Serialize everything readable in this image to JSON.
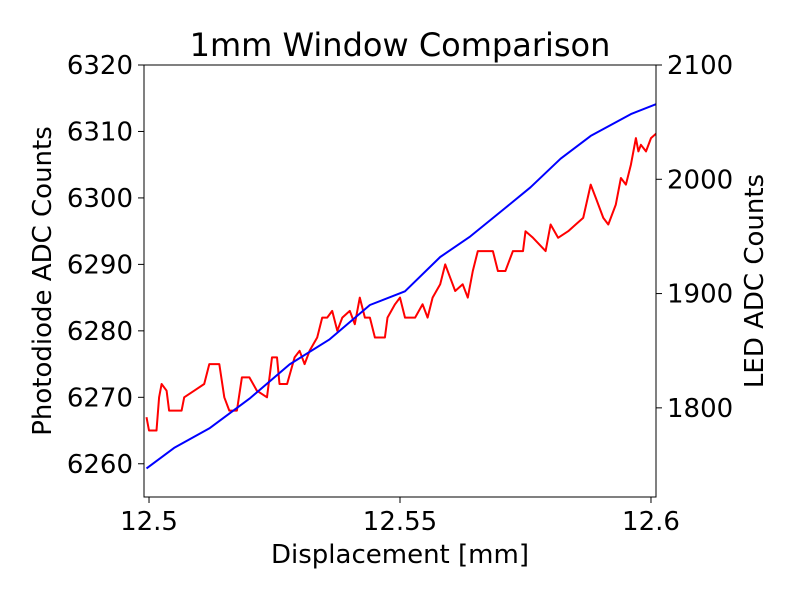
{
  "chart_data": {
    "type": "line",
    "title": "1mm Window Comparison",
    "xlabel": "Displacement [mm]",
    "ylabel_left": "Photodiode ADC Counts",
    "ylabel_right": "LED ADC Counts",
    "xlim": [
      12.499,
      12.601
    ],
    "ylim_left": [
      6255,
      6320
    ],
    "ylim_right": [
      1722,
      2100
    ],
    "x_ticks": [
      {
        "value": 12.5,
        "label": "12.5"
      },
      {
        "value": 12.55,
        "label": "12.55"
      },
      {
        "value": 12.6,
        "label": "12.6"
      }
    ],
    "y_ticks_left": [
      {
        "value": 6260,
        "label": "6260"
      },
      {
        "value": 6270,
        "label": "6270"
      },
      {
        "value": 6280,
        "label": "6280"
      },
      {
        "value": 6290,
        "label": "6290"
      },
      {
        "value": 6300,
        "label": "6300"
      },
      {
        "value": 6310,
        "label": "6310"
      },
      {
        "value": 6320,
        "label": "6320"
      }
    ],
    "y_ticks_right": [
      {
        "value": 1800,
        "label": "1800"
      },
      {
        "value": 1900,
        "label": "1900"
      },
      {
        "value": 2000,
        "label": "2000"
      },
      {
        "value": 2100,
        "label": "2100"
      }
    ],
    "grid": false,
    "series": [
      {
        "axis": "left",
        "color": "#ff0000",
        "points": [
          [
            12.4995,
            6267
          ],
          [
            12.5,
            6265
          ],
          [
            12.5015,
            6265
          ],
          [
            12.502,
            6270
          ],
          [
            12.5025,
            6272
          ],
          [
            12.5035,
            6271
          ],
          [
            12.504,
            6268
          ],
          [
            12.5065,
            6268
          ],
          [
            12.507,
            6270
          ],
          [
            12.509,
            6271
          ],
          [
            12.511,
            6272
          ],
          [
            12.512,
            6275
          ],
          [
            12.514,
            6275
          ],
          [
            12.515,
            6270
          ],
          [
            12.516,
            6268
          ],
          [
            12.5175,
            6268
          ],
          [
            12.5185,
            6273
          ],
          [
            12.52,
            6273
          ],
          [
            12.5215,
            6271
          ],
          [
            12.5235,
            6270
          ],
          [
            12.5245,
            6276
          ],
          [
            12.5255,
            6276
          ],
          [
            12.526,
            6272
          ],
          [
            12.5275,
            6272
          ],
          [
            12.529,
            6276
          ],
          [
            12.53,
            6277
          ],
          [
            12.531,
            6275
          ],
          [
            12.532,
            6277
          ],
          [
            12.5335,
            6279
          ],
          [
            12.5345,
            6282
          ],
          [
            12.5355,
            6282
          ],
          [
            12.5365,
            6283
          ],
          [
            12.5375,
            6280
          ],
          [
            12.5385,
            6282
          ],
          [
            12.54,
            6283
          ],
          [
            12.541,
            6281
          ],
          [
            12.542,
            6285
          ],
          [
            12.543,
            6282
          ],
          [
            12.544,
            6282
          ],
          [
            12.545,
            6279
          ],
          [
            12.547,
            6279
          ],
          [
            12.5475,
            6282
          ],
          [
            12.549,
            6284
          ],
          [
            12.55,
            6285
          ],
          [
            12.551,
            6282
          ],
          [
            12.553,
            6282
          ],
          [
            12.5545,
            6284
          ],
          [
            12.5555,
            6282
          ],
          [
            12.5565,
            6285
          ],
          [
            12.558,
            6287
          ],
          [
            12.559,
            6290
          ],
          [
            12.56,
            6288
          ],
          [
            12.561,
            6286
          ],
          [
            12.5625,
            6287
          ],
          [
            12.5635,
            6285
          ],
          [
            12.5645,
            6289
          ],
          [
            12.5655,
            6292
          ],
          [
            12.5685,
            6292
          ],
          [
            12.5695,
            6289
          ],
          [
            12.571,
            6289
          ],
          [
            12.5725,
            6292
          ],
          [
            12.5745,
            6292
          ],
          [
            12.575,
            6295
          ],
          [
            12.5765,
            6294
          ],
          [
            12.579,
            6292
          ],
          [
            12.58,
            6296
          ],
          [
            12.5815,
            6294
          ],
          [
            12.5835,
            6295
          ],
          [
            12.585,
            6296
          ],
          [
            12.5865,
            6297
          ],
          [
            12.588,
            6302
          ],
          [
            12.589,
            6300
          ],
          [
            12.5905,
            6297
          ],
          [
            12.5915,
            6296
          ],
          [
            12.593,
            6299
          ],
          [
            12.594,
            6303
          ],
          [
            12.595,
            6302
          ],
          [
            12.596,
            6305
          ],
          [
            12.597,
            6309
          ],
          [
            12.5975,
            6307
          ],
          [
            12.598,
            6308
          ],
          [
            12.599,
            6307
          ],
          [
            12.6,
            6309
          ],
          [
            12.6015,
            6310
          ],
          [
            12.6025,
            6313
          ],
          [
            12.6035,
            6310
          ]
        ]
      },
      {
        "axis": "right",
        "color": "#0000ff",
        "points": [
          [
            12.4995,
            1747
          ],
          [
            12.505,
            1765
          ],
          [
            12.512,
            1782
          ],
          [
            12.52,
            1808
          ],
          [
            12.528,
            1838
          ],
          [
            12.536,
            1860
          ],
          [
            12.544,
            1890
          ],
          [
            12.551,
            1902
          ],
          [
            12.558,
            1932
          ],
          [
            12.564,
            1950
          ],
          [
            12.571,
            1975
          ],
          [
            12.576,
            1993
          ],
          [
            12.582,
            2018
          ],
          [
            12.588,
            2038
          ],
          [
            12.596,
            2057
          ],
          [
            12.6035,
            2070
          ]
        ]
      }
    ]
  }
}
